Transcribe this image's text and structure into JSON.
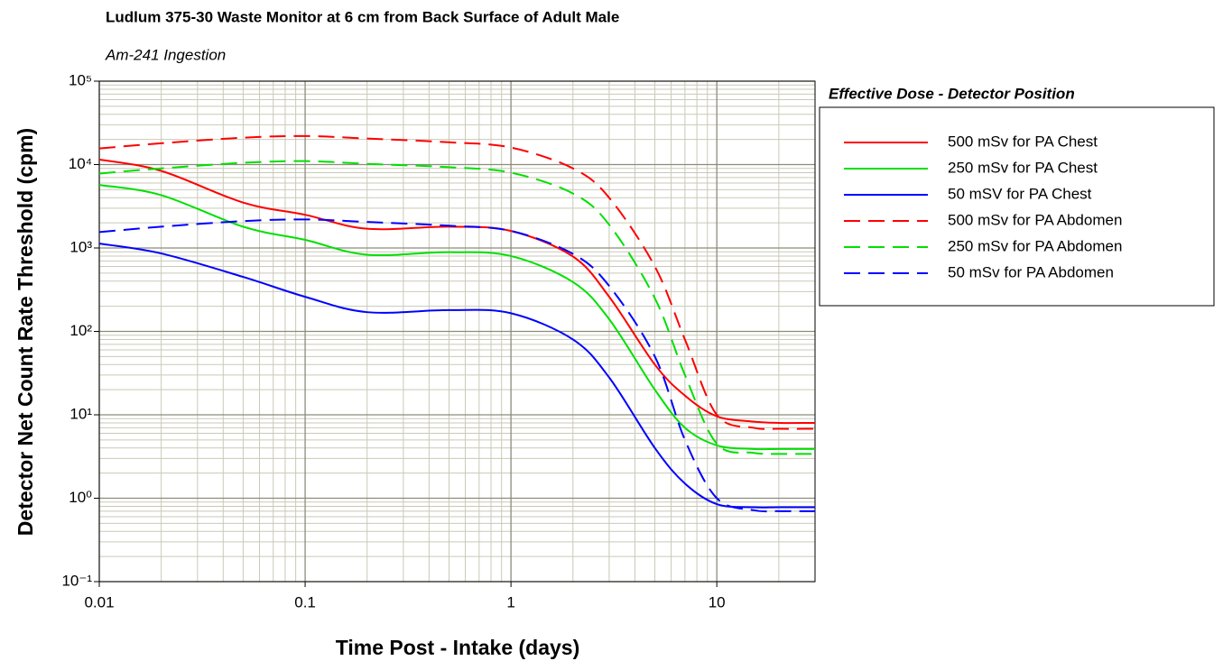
{
  "chart_data": {
    "type": "line",
    "title": "Ludlum 375-30 Waste Monitor at 6 cm from Back Surface of Adult Male",
    "subtitle": "Am-241 Ingestion",
    "x_label": "Time Post - Intake (days)",
    "y_label": "Detector Net Count Rate Threshold (cpm)",
    "legend_title": "Effective Dose - Detector Position",
    "legend_position": "right",
    "xscale": "log",
    "yscale": "log",
    "grid": true,
    "xlim": [
      0.01,
      30
    ],
    "ylim": [
      0.1,
      100000
    ],
    "xticks": [
      0.01,
      0.1,
      1,
      10
    ],
    "yticks": [
      {
        "value": 0.1,
        "label": "10⁻¹"
      },
      {
        "value": 1,
        "label": "10⁰"
      },
      {
        "value": 10,
        "label": "10¹"
      },
      {
        "value": 100,
        "label": "10²"
      },
      {
        "value": 1000,
        "label": "10³"
      },
      {
        "value": 10000,
        "label": "10⁴"
      },
      {
        "value": 100000,
        "label": "10⁵"
      }
    ],
    "xminor": [
      0.02,
      0.03,
      0.04,
      0.05,
      0.06,
      0.07,
      0.08,
      0.09,
      0.2,
      0.3,
      0.4,
      0.5,
      0.6,
      0.7,
      0.8,
      0.9,
      2,
      3,
      4,
      5,
      6,
      7,
      8,
      9,
      20,
      30
    ],
    "yminor": [
      0.2,
      0.3,
      0.4,
      0.5,
      0.6,
      0.7,
      0.8,
      0.9,
      2,
      3,
      4,
      5,
      6,
      7,
      8,
      9,
      20,
      30,
      40,
      50,
      60,
      70,
      80,
      90,
      200,
      300,
      400,
      500,
      600,
      700,
      800,
      900,
      2000,
      3000,
      4000,
      5000,
      6000,
      7000,
      8000,
      9000,
      20000,
      30000,
      40000,
      50000,
      60000,
      70000,
      80000,
      90000
    ],
    "x": [
      0.01,
      0.02,
      0.05,
      0.1,
      0.2,
      0.5,
      1,
      2,
      3,
      5,
      7,
      10,
      15,
      20,
      30
    ],
    "series": [
      {
        "name": "500 mSv for PA Chest",
        "color": "#ff0000",
        "dash": "solid",
        "values": [
          11500,
          8400,
          3500,
          2500,
          1700,
          1800,
          1600,
          790,
          260,
          40,
          17,
          9.6,
          8.3,
          8,
          8
        ]
      },
      {
        "name": "250 mSv for PA Chest",
        "color": "#00e000",
        "dash": "solid",
        "values": [
          5700,
          4300,
          1800,
          1250,
          830,
          890,
          800,
          390,
          140,
          20,
          7,
          4.3,
          3.9,
          3.9,
          3.9
        ]
      },
      {
        "name": "50 mSV for PA Chest",
        "color": "#0000ff",
        "dash": "solid",
        "values": [
          1130,
          860,
          450,
          260,
          170,
          180,
          165,
          80,
          28,
          4,
          1.5,
          0.85,
          0.78,
          0.78,
          0.78
        ]
      },
      {
        "name": "500 mSv for PA Abdomen",
        "color": "#ff0000",
        "dash": "dashed",
        "values": [
          15600,
          18000,
          21000,
          22000,
          20500,
          18500,
          16000,
          9000,
          4000,
          600,
          80,
          10,
          7,
          6.8,
          6.8
        ]
      },
      {
        "name": "250 mSv for PA Abdomen",
        "color": "#00e000",
        "dash": "dashed",
        "values": [
          7800,
          9000,
          10500,
          11000,
          10200,
          9300,
          8000,
          4500,
          1900,
          250,
          30,
          4.5,
          3.5,
          3.4,
          3.4
        ]
      },
      {
        "name": "50 mSv for PA Abdomen",
        "color": "#0000ff",
        "dash": "dashed",
        "values": [
          1550,
          1800,
          2100,
          2200,
          2050,
          1850,
          1600,
          850,
          350,
          50,
          5,
          1.0,
          0.72,
          0.7,
          0.7
        ]
      }
    ]
  }
}
